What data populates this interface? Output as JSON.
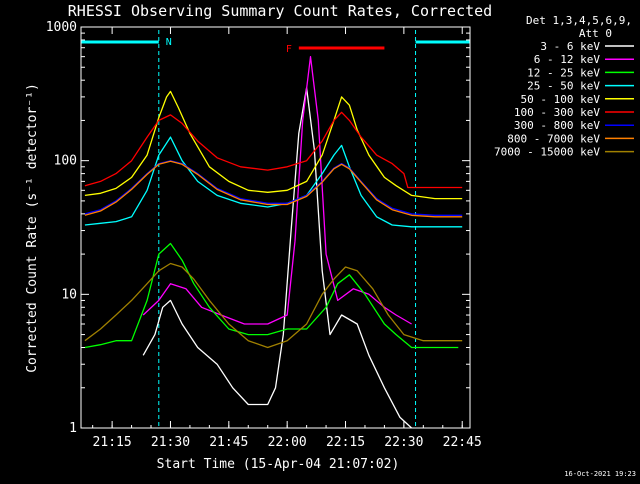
{
  "chart_data": {
    "type": "line",
    "title": "RHESSI Observing Summary Count Rates, Corrected",
    "xlabel": "Start Time (15-Apr-04 21:07:02)",
    "ylabel": "Corrected Count Rate (s⁻¹ detector⁻¹)",
    "y_scale": "log",
    "ylim": [
      1,
      1000
    ],
    "xlim": [
      "21:07",
      "22:47"
    ],
    "x_ticks": [
      "21:15",
      "21:30",
      "21:45",
      "22:00",
      "22:15",
      "22:30",
      "22:45"
    ],
    "y_ticks": [
      "1",
      "10",
      "100",
      "1000"
    ],
    "legend_header": [
      "Det 1,3,4,5,6,9,",
      "Att 0"
    ],
    "legend_placement": "right",
    "annotations": {
      "night_flag": "N",
      "flare_flag": "F"
    },
    "night_intervals": [
      [
        "21:07",
        "21:27"
      ],
      [
        "22:33",
        "22:47"
      ]
    ],
    "flare_interval": [
      "22:03",
      "22:25"
    ],
    "footer_date": "16-Oct-2021 19:23",
    "series": [
      {
        "name": "3 - 6 keV",
        "color": "#ffffff",
        "x": [
          "21:23",
          "21:26",
          "21:28",
          "21:30",
          "21:33",
          "21:37",
          "21:42",
          "21:46",
          "21:50",
          "21:55",
          "21:57",
          "21:59",
          "22:01",
          "22:03",
          "22:05",
          "22:07",
          "22:09",
          "22:11",
          "22:14",
          "22:18",
          "22:21",
          "22:25",
          "22:29",
          "22:32"
        ],
        "y": [
          3.5,
          5,
          8,
          9,
          6,
          4,
          3,
          2,
          1.5,
          1.5,
          2,
          5,
          30,
          160,
          350,
          120,
          15,
          5,
          7,
          6,
          3.5,
          2,
          1.2,
          1
        ]
      },
      {
        "name": "6 - 12 keV",
        "color": "#ff00ff",
        "x": [
          "21:23",
          "21:27",
          "21:30",
          "21:34",
          "21:38",
          "21:43",
          "21:49",
          "21:55",
          "22:00",
          "22:02",
          "22:04",
          "22:06",
          "22:08",
          "22:10",
          "22:13",
          "22:17",
          "22:21",
          "22:25",
          "22:28",
          "22:32"
        ],
        "y": [
          7,
          9,
          12,
          11,
          8,
          7,
          6,
          6,
          7,
          25,
          200,
          600,
          200,
          20,
          9,
          11,
          10,
          8,
          7,
          6
        ]
      },
      {
        "name": "12 - 25 keV",
        "color": "#00ff00",
        "x": [
          "21:08",
          "21:12",
          "21:16",
          "21:20",
          "21:24",
          "21:27",
          "21:30",
          "21:33",
          "21:36",
          "21:40",
          "21:45",
          "21:50",
          "21:55",
          "22:00",
          "22:05",
          "22:10",
          "22:13",
          "22:16",
          "22:20",
          "22:25",
          "22:28",
          "22:32",
          "22:36",
          "22:40",
          "22:44"
        ],
        "y": [
          4,
          4.2,
          4.5,
          4.5,
          9,
          20,
          24,
          18,
          12,
          8,
          5.5,
          5,
          5,
          5.5,
          5.5,
          8,
          12,
          14,
          10,
          6,
          5,
          4,
          4,
          4,
          4
        ]
      },
      {
        "name": "25 - 50 keV",
        "color": "#00ffff",
        "x": [
          "21:08",
          "21:12",
          "21:16",
          "21:20",
          "21:24",
          "21:27",
          "21:30",
          "21:33",
          "21:37",
          "21:42",
          "21:48",
          "21:55",
          "22:00",
          "22:05",
          "22:09",
          "22:12",
          "22:14",
          "22:16",
          "22:19",
          "22:23",
          "22:27",
          "22:32",
          "22:38",
          "22:45"
        ],
        "y": [
          33,
          34,
          35,
          38,
          60,
          110,
          150,
          100,
          70,
          55,
          48,
          45,
          48,
          55,
          80,
          110,
          130,
          90,
          55,
          38,
          33,
          32,
          32,
          32
        ]
      },
      {
        "name": "50 - 100 keV",
        "color": "#ffff00",
        "x": [
          "21:08",
          "21:12",
          "21:16",
          "21:20",
          "21:24",
          "21:27",
          "21:29",
          "21:30",
          "21:32",
          "21:35",
          "21:40",
          "21:45",
          "21:50",
          "21:55",
          "22:00",
          "22:05",
          "22:09",
          "22:12",
          "22:14",
          "22:16",
          "22:18",
          "22:21",
          "22:25",
          "22:28",
          "22:32",
          "22:38",
          "22:45"
        ],
        "y": [
          55,
          57,
          62,
          75,
          110,
          210,
          300,
          330,
          250,
          160,
          90,
          70,
          60,
          58,
          60,
          70,
          110,
          200,
          300,
          260,
          170,
          110,
          75,
          65,
          55,
          52,
          52
        ]
      },
      {
        "name": "100 - 300 keV",
        "color": "#ff0000",
        "x": [
          "21:08",
          "21:12",
          "21:16",
          "21:20",
          "21:24",
          "21:27",
          "21:30",
          "21:33",
          "21:37",
          "21:42",
          "21:48",
          "21:55",
          "22:00",
          "22:05",
          "22:09",
          "22:12",
          "22:14",
          "22:16",
          "22:19",
          "22:23",
          "22:27",
          "22:30",
          "22:31",
          "22:35",
          "22:40",
          "22:45"
        ],
        "y": [
          65,
          70,
          80,
          100,
          150,
          200,
          220,
          190,
          140,
          105,
          90,
          85,
          90,
          100,
          140,
          200,
          230,
          200,
          150,
          110,
          95,
          80,
          63,
          63,
          63,
          63
        ]
      },
      {
        "name": "300 - 800 keV",
        "color": "#0000ff",
        "x": [
          "21:08",
          "21:12",
          "21:16",
          "21:20",
          "21:24",
          "21:27",
          "21:30",
          "21:33",
          "21:37",
          "21:42",
          "21:48",
          "21:55",
          "22:00",
          "22:05",
          "22:09",
          "22:12",
          "22:14",
          "22:16",
          "22:19",
          "22:23",
          "22:27",
          "22:32",
          "22:38",
          "22:45"
        ],
        "y": [
          40,
          43,
          50,
          62,
          80,
          95,
          100,
          95,
          80,
          62,
          52,
          48,
          48,
          55,
          70,
          88,
          95,
          88,
          70,
          52,
          44,
          40,
          39,
          39
        ]
      },
      {
        "name": "800 - 7000 keV",
        "color": "#ff8000",
        "x": [
          "21:08",
          "21:12",
          "21:16",
          "21:20",
          "21:24",
          "21:27",
          "21:30",
          "21:33",
          "21:37",
          "21:42",
          "21:48",
          "21:55",
          "22:00",
          "22:05",
          "22:09",
          "22:12",
          "22:14",
          "22:16",
          "22:19",
          "22:23",
          "22:27",
          "22:32",
          "22:38",
          "22:45"
        ],
        "y": [
          39,
          42,
          49,
          61,
          79,
          94,
          99,
          94,
          79,
          61,
          51,
          47,
          47,
          54,
          69,
          87,
          94,
          87,
          69,
          51,
          43,
          39,
          38,
          38
        ]
      },
      {
        "name": "7000 - 15000 keV",
        "color": "#a08000",
        "x": [
          "21:08",
          "21:12",
          "21:16",
          "21:20",
          "21:24",
          "21:27",
          "21:30",
          "21:33",
          "21:36",
          "21:40",
          "21:45",
          "21:50",
          "21:55",
          "22:00",
          "22:05",
          "22:09",
          "22:12",
          "22:15",
          "22:18",
          "22:22",
          "22:26",
          "22:30",
          "22:35",
          "22:40",
          "22:45"
        ],
        "y": [
          4.5,
          5.5,
          7,
          9,
          12,
          15,
          17,
          16,
          13,
          9,
          6,
          4.5,
          4,
          4.5,
          6,
          10,
          13,
          16,
          15,
          11,
          7,
          5,
          4.5,
          4.5,
          4.5
        ]
      }
    ]
  }
}
